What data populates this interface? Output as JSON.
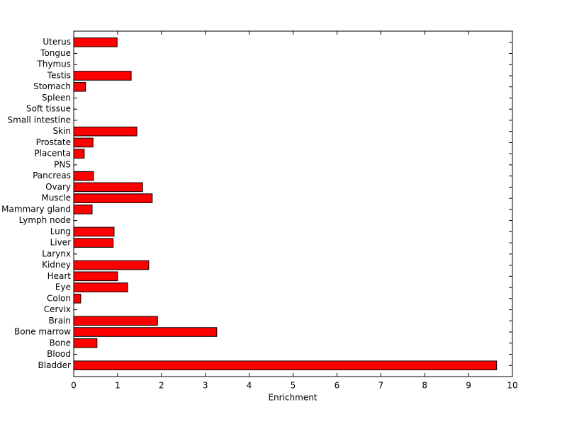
{
  "chart_data": {
    "type": "barh",
    "xlabel": "Enrichment",
    "categories": [
      "Bladder",
      "Blood",
      "Bone",
      "Bone marrow",
      "Brain",
      "Cervix",
      "Colon",
      "Eye",
      "Heart",
      "Kidney",
      "Larynx",
      "Liver",
      "Lung",
      "Lymph node",
      "Mammary gland",
      "Muscle",
      "Ovary",
      "Pancreas",
      "PNS",
      "Placenta",
      "Prostate",
      "Skin",
      "Small intestine",
      "Soft tissue",
      "Spleen",
      "Stomach",
      "Testis",
      "Thymus",
      "Tongue",
      "Uterus"
    ],
    "values": [
      9.64,
      0,
      0.53,
      3.26,
      1.91,
      0,
      0.16,
      1.23,
      1.0,
      1.71,
      0,
      0.9,
      0.92,
      0,
      0.42,
      1.79,
      1.57,
      0.45,
      0,
      0.24,
      0.44,
      1.44,
      0,
      0,
      0,
      0.27,
      1.31,
      0,
      0,
      0.99
    ],
    "color": "#ff0000",
    "xlim": [
      0,
      10
    ],
    "xticks": [
      0,
      1,
      2,
      3,
      4,
      5,
      6,
      7,
      8,
      9,
      10
    ]
  }
}
